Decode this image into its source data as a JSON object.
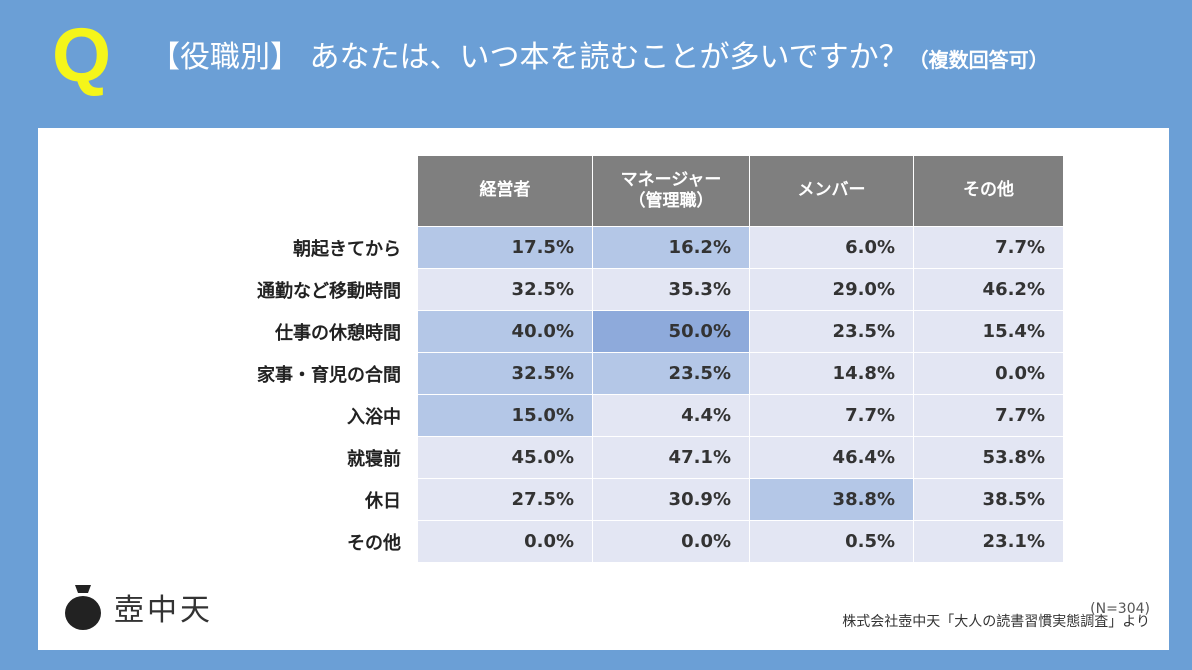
{
  "header": {
    "q_mark": "Q",
    "title_main": "【役職別】 あなたは、いつ本を読むことが多いですか？",
    "title_note": "（複数回答可）"
  },
  "chart_data": {
    "type": "table",
    "columns": [
      "経営者",
      "マネージャー\n（管理職）",
      "メンバー",
      "その他"
    ],
    "rows": [
      {
        "label": "朝起きてから",
        "values": [
          17.5,
          16.2,
          6.0,
          7.7
        ]
      },
      {
        "label": "通勤など移動時間",
        "values": [
          32.5,
          35.3,
          29.0,
          46.2
        ]
      },
      {
        "label": "仕事の休憩時間",
        "values": [
          40.0,
          50.0,
          23.5,
          15.4
        ]
      },
      {
        "label": "家事・育児の合間",
        "values": [
          32.5,
          23.5,
          14.8,
          0.0
        ]
      },
      {
        "label": "入浴中",
        "values": [
          15.0,
          4.4,
          7.7,
          7.7
        ]
      },
      {
        "label": "就寝前",
        "values": [
          45.0,
          47.1,
          46.4,
          53.8
        ]
      },
      {
        "label": "休日",
        "values": [
          27.5,
          30.9,
          38.8,
          38.5
        ]
      },
      {
        "label": "その他",
        "values": [
          0.0,
          0.0,
          0.5,
          23.1
        ]
      }
    ],
    "value_suffix": "%",
    "highlights": [
      {
        "row": 0,
        "col": 0,
        "level": "light"
      },
      {
        "row": 0,
        "col": 1,
        "level": "light"
      },
      {
        "row": 2,
        "col": 0,
        "level": "light"
      },
      {
        "row": 2,
        "col": 1,
        "level": "dark"
      },
      {
        "row": 3,
        "col": 0,
        "level": "light"
      },
      {
        "row": 3,
        "col": 1,
        "level": "light"
      },
      {
        "row": 4,
        "col": 0,
        "level": "light"
      },
      {
        "row": 6,
        "col": 2,
        "level": "light"
      }
    ],
    "colors": {
      "header_bg": "#7f7f7f",
      "cell_bg": "#e3e6f3",
      "highlight_light": "#b4c7e7",
      "highlight_dark": "#8eaadb"
    }
  },
  "footer": {
    "sample_size": "(N=304)",
    "source": "株式会社壺中天「大人の読書習慣実態調査」より"
  },
  "logo": {
    "text": "壺中天",
    "icon": "pot-icon"
  }
}
